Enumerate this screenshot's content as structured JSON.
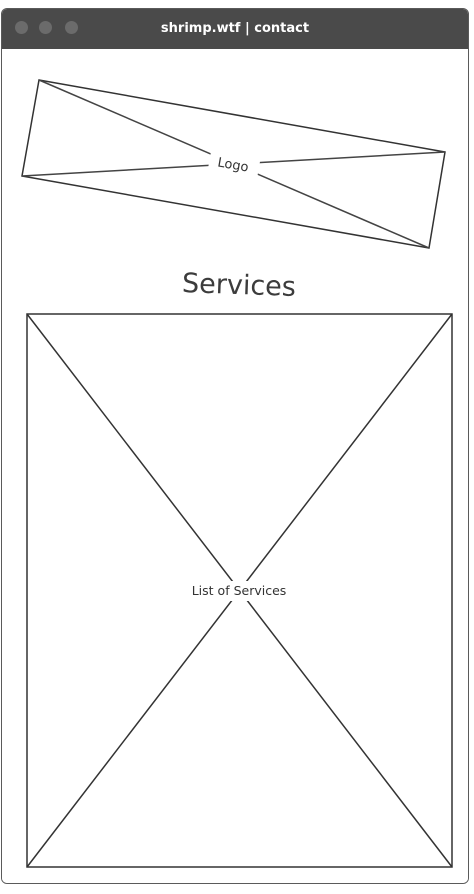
{
  "window": {
    "title": "shrimp.wtf | contact"
  },
  "logo": {
    "label": "Logo"
  },
  "services": {
    "heading": "Services",
    "list_label": "List of Services"
  }
}
